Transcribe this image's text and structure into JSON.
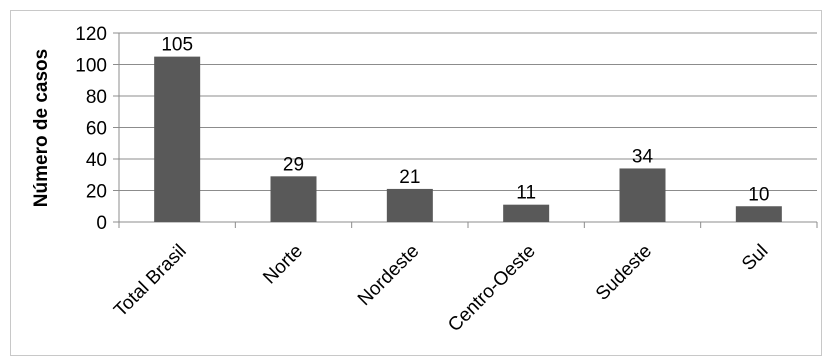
{
  "chart_data": {
    "type": "bar",
    "title": "",
    "xlabel": "",
    "ylabel": "Número de casos",
    "ylim": [
      0,
      120
    ],
    "yticks": [
      0,
      20,
      40,
      60,
      80,
      100,
      120
    ],
    "grid": true,
    "legend": "none",
    "categories": [
      "Total Brasil",
      "Norte",
      "Nordeste",
      "Centro-Oeste",
      "Sudeste",
      "Sul"
    ],
    "values": [
      105,
      29,
      21,
      11,
      34,
      10
    ],
    "data_labels": [
      "105",
      "29",
      "21",
      "11",
      "34",
      "10"
    ],
    "bar_color": "#595959",
    "grid_color": "#8c8c8c"
  }
}
